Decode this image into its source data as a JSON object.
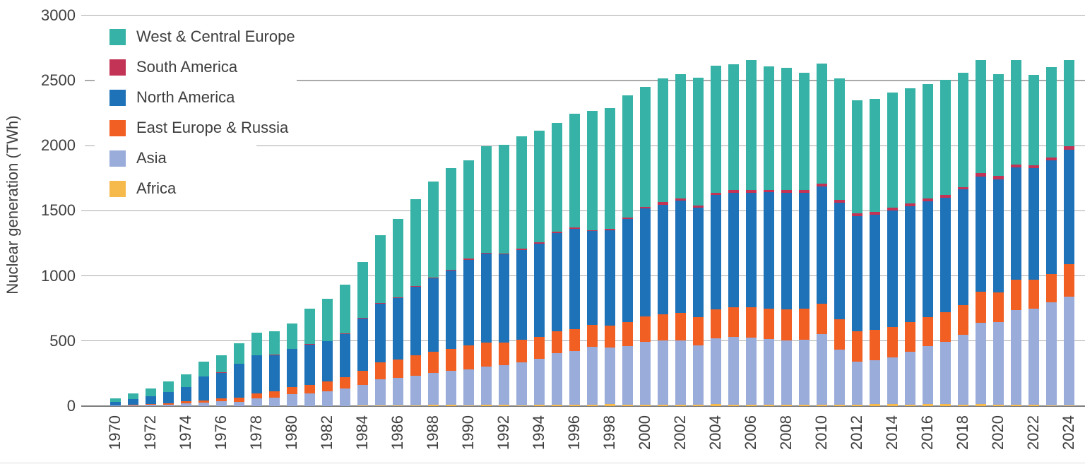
{
  "y_axis": {
    "label": "Nuclear generation (TWh)",
    "tick_labels": [
      "0",
      "500",
      "1000",
      "1500",
      "2000",
      "2500",
      "3000"
    ]
  },
  "x_axis": {
    "tick_labels": [
      "1970",
      "1972",
      "1974",
      "1976",
      "1978",
      "1980",
      "1982",
      "1984",
      "1986",
      "1988",
      "1990",
      "1992",
      "1994",
      "1996",
      "1998",
      "2000",
      "2002",
      "2004",
      "2006",
      "2008",
      "2010",
      "2012",
      "2014",
      "2016",
      "2018",
      "2020",
      "2022",
      "2024"
    ]
  },
  "legend": {
    "items": [
      {
        "label": "West & Central Europe",
        "color": "#36b3a6"
      },
      {
        "label": "South America",
        "color": "#c23355"
      },
      {
        "label": "North America",
        "color": "#1d72b8"
      },
      {
        "label": "East Europe & Russia",
        "color": "#f15f22"
      },
      {
        "label": "Asia",
        "color": "#9aacda"
      },
      {
        "label": "Africa",
        "color": "#f6b94c"
      }
    ]
  },
  "chart_data": {
    "type": "bar",
    "stacked": true,
    "title": "",
    "ylabel": "Nuclear generation (TWh)",
    "ylim": [
      0,
      3000
    ],
    "ytick_step": 500,
    "grid": true,
    "legend_position": "top-left",
    "categories": [
      1970,
      1971,
      1972,
      1973,
      1974,
      1975,
      1976,
      1977,
      1978,
      1979,
      1980,
      1981,
      1982,
      1983,
      1984,
      1985,
      1986,
      1987,
      1988,
      1989,
      1990,
      1991,
      1992,
      1993,
      1994,
      1995,
      1996,
      1997,
      1998,
      1999,
      2000,
      2001,
      2002,
      2003,
      2004,
      2005,
      2006,
      2007,
      2008,
      2009,
      2010,
      2011,
      2012,
      2013,
      2014,
      2015,
      2016,
      2017,
      2018,
      2019,
      2020,
      2021,
      2022,
      2023,
      2024
    ],
    "series": [
      {
        "name": "Africa",
        "color": "#f6b94c",
        "values": [
          0,
          0,
          0,
          0,
          0,
          0,
          0,
          0,
          0,
          0,
          0,
          0,
          0,
          0,
          4,
          6,
          8,
          6,
          11,
          11,
          8,
          9,
          9,
          7,
          10,
          11,
          12,
          13,
          14,
          13,
          13,
          11,
          12,
          13,
          14,
          12,
          10,
          13,
          13,
          12,
          13,
          13,
          12,
          14,
          15,
          11,
          15,
          15,
          11,
          14,
          12,
          12,
          10,
          8,
          8
        ]
      },
      {
        "name": "Asia",
        "color": "#9aacda",
        "values": [
          5,
          8,
          11,
          13,
          22,
          28,
          38,
          34,
          60,
          65,
          90,
          98,
          113,
          133,
          158,
          200,
          210,
          228,
          242,
          260,
          276,
          295,
          308,
          330,
          355,
          395,
          413,
          440,
          435,
          450,
          482,
          492,
          495,
          455,
          505,
          518,
          515,
          500,
          490,
          500,
          540,
          420,
          330,
          340,
          360,
          405,
          445,
          478,
          535,
          625,
          635,
          725,
          740,
          790,
          830
        ]
      },
      {
        "name": "East Europe & Russia",
        "color": "#f15f22",
        "values": [
          3,
          5,
          7,
          10,
          14,
          18,
          24,
          32,
          40,
          48,
          55,
          65,
          75,
          90,
          110,
          130,
          140,
          155,
          165,
          170,
          185,
          185,
          172,
          175,
          165,
          170,
          168,
          170,
          168,
          180,
          195,
          200,
          210,
          215,
          225,
          230,
          235,
          235,
          240,
          235,
          235,
          235,
          235,
          232,
          232,
          230,
          225,
          228,
          232,
          240,
          225,
          235,
          220,
          218,
          252
        ]
      },
      {
        "name": "North America",
        "color": "#1d72b8",
        "values": [
          22,
          40,
          57,
          85,
          110,
          182,
          195,
          258,
          290,
          280,
          295,
          310,
          310,
          330,
          400,
          450,
          470,
          525,
          565,
          600,
          655,
          680,
          675,
          688,
          720,
          755,
          770,
          720,
          735,
          795,
          828,
          845,
          860,
          840,
          875,
          880,
          880,
          895,
          895,
          890,
          900,
          895,
          880,
          885,
          895,
          890,
          890,
          880,
          885,
          885,
          870,
          860,
          855,
          870,
          880
        ]
      },
      {
        "name": "South America",
        "color": "#c23355",
        "values": [
          0,
          0,
          0,
          0,
          1,
          2,
          2,
          3,
          3,
          3,
          2,
          3,
          2,
          3,
          4,
          8,
          8,
          6,
          6,
          7,
          10,
          9,
          9,
          8,
          8,
          9,
          9,
          10,
          10,
          10,
          12,
          20,
          19,
          19,
          20,
          17,
          19,
          19,
          20,
          20,
          21,
          20,
          21,
          20,
          20,
          21,
          22,
          21,
          21,
          23,
          24,
          23,
          23,
          23,
          26
        ]
      },
      {
        "name": "West & Central Europe",
        "color": "#36b3a6",
        "values": [
          30,
          45,
          62,
          80,
          98,
          112,
          130,
          158,
          172,
          180,
          195,
          270,
          325,
          375,
          430,
          520,
          600,
          670,
          735,
          780,
          753,
          820,
          835,
          865,
          855,
          835,
          873,
          915,
          925,
          940,
          920,
          950,
          955,
          980,
          975,
          970,
          1000,
          945,
          940,
          902,
          922,
          935,
          870,
          866,
          888,
          882,
          878,
          882,
          878,
          870,
          785,
          800,
          695,
          692,
          663
        ]
      }
    ]
  }
}
